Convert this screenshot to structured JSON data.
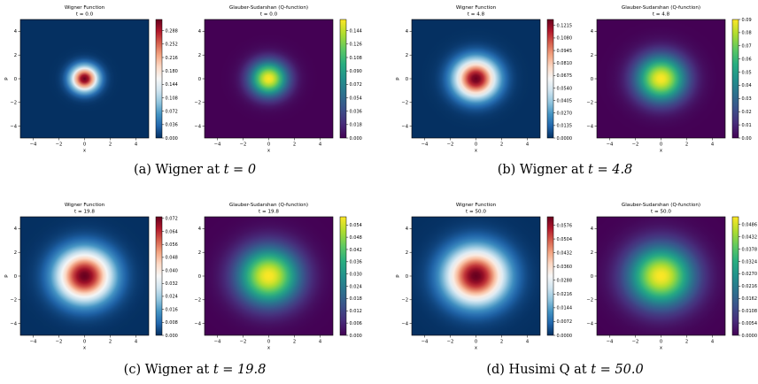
{
  "captions": [
    {
      "label": "(a)",
      "prefix": "Wigner at",
      "expr": "t = 0"
    },
    {
      "label": "(b)",
      "prefix": "Wigner at",
      "expr": "t = 4.8"
    },
    {
      "label": "(c)",
      "prefix": "Wigner at",
      "expr": "t = 19.8"
    },
    {
      "label": "(d)",
      "prefix": "Husimi Q at",
      "expr": "t = 50.0"
    }
  ],
  "chart_data": [
    {
      "type": "heatmap",
      "title": "Wigner Function",
      "subtitle": "t = 0.0",
      "xlabel": "x",
      "ylabel": "p",
      "xlim": [
        -5,
        5
      ],
      "ylim": [
        -5,
        5
      ],
      "xticks": [
        "−4",
        "−2",
        "0",
        "2",
        "4"
      ],
      "yticks": [
        "4",
        "2",
        "0",
        "−2",
        "−4"
      ],
      "colormap": "RdBu_r",
      "colorbar_ticks": [
        "0.288",
        "0.252",
        "0.216",
        "0.180",
        "0.144",
        "0.108",
        "0.072",
        "0.036",
        "0.000"
      ],
      "colorbar_max": 0.318,
      "peak": 0.318,
      "gaussian_sigma": 0.71,
      "center": [
        0,
        0
      ]
    },
    {
      "type": "heatmap",
      "title": "Glauber-Sudarshan (Q-function)",
      "subtitle": "t = 0.0",
      "xlabel": "x",
      "ylabel": "",
      "xlim": [
        -5,
        5
      ],
      "ylim": [
        -5,
        5
      ],
      "xticks": [
        "−4",
        "−2",
        "0",
        "2",
        "4"
      ],
      "yticks": [
        "4",
        "2",
        "0",
        "−2",
        "−4"
      ],
      "colormap": "viridis",
      "colorbar_ticks": [
        "0.144",
        "0.126",
        "0.108",
        "0.090",
        "0.072",
        "0.054",
        "0.036",
        "0.018",
        "0.000"
      ],
      "colorbar_max": 0.159,
      "peak": 0.159,
      "gaussian_sigma": 1.0,
      "center": [
        0,
        0
      ]
    },
    {
      "type": "heatmap",
      "title": "Wigner Function",
      "subtitle": "t = 4.8",
      "xlabel": "x",
      "ylabel": "p",
      "xlim": [
        -5,
        5
      ],
      "ylim": [
        -5,
        5
      ],
      "xticks": [
        "−4",
        "−2",
        "0",
        "2",
        "4"
      ],
      "yticks": [
        "4",
        "2",
        "0",
        "−2",
        "−4"
      ],
      "colormap": "RdBu_r",
      "colorbar_ticks": [
        "0.1215",
        "0.1080",
        "0.0945",
        "0.0810",
        "0.0675",
        "0.0540",
        "0.0405",
        "0.0270",
        "0.0135",
        "0.0000"
      ],
      "colorbar_max": 0.128,
      "peak": 0.128,
      "gaussian_sigma": 1.12,
      "center": [
        0,
        0
      ]
    },
    {
      "type": "heatmap",
      "title": "Glauber-Sudarshan (Q-function)",
      "subtitle": "t = 4.8",
      "xlabel": "x",
      "ylabel": "",
      "xlim": [
        -5,
        5
      ],
      "ylim": [
        -5,
        5
      ],
      "xticks": [
        "−4",
        "−2",
        "0",
        "2",
        "4"
      ],
      "yticks": [
        "4",
        "2",
        "0",
        "−2",
        "−4"
      ],
      "colormap": "viridis",
      "colorbar_ticks": [
        "0.09",
        "0.08",
        "0.07",
        "0.06",
        "0.05",
        "0.04",
        "0.03",
        "0.02",
        "0.01",
        "0.00"
      ],
      "colorbar_max": 0.09,
      "peak": 0.09,
      "gaussian_sigma": 1.33,
      "center": [
        0,
        0
      ]
    },
    {
      "type": "heatmap",
      "title": "Wigner Function",
      "subtitle": "t = 19.8",
      "xlabel": "x",
      "ylabel": "p",
      "xlim": [
        -5,
        5
      ],
      "ylim": [
        -5,
        5
      ],
      "xticks": [
        "−4",
        "−2",
        "0",
        "2",
        "4"
      ],
      "yticks": [
        "4",
        "2",
        "0",
        "−2",
        "−4"
      ],
      "colormap": "RdBu_r",
      "colorbar_ticks": [
        "0.072",
        "0.064",
        "0.056",
        "0.048",
        "0.040",
        "0.032",
        "0.024",
        "0.016",
        "0.008",
        "0.000"
      ],
      "colorbar_max": 0.073,
      "peak": 0.073,
      "gaussian_sigma": 1.48,
      "center": [
        0,
        0
      ]
    },
    {
      "type": "heatmap",
      "title": "Glauber-Sudarshan (Q-function)",
      "subtitle": "t = 19.8",
      "xlabel": "x",
      "ylabel": "",
      "xlim": [
        -5,
        5
      ],
      "ylim": [
        -5,
        5
      ],
      "xticks": [
        "−4",
        "−2",
        "0",
        "2",
        "4"
      ],
      "yticks": [
        "4",
        "2",
        "0",
        "−2",
        "−4"
      ],
      "colormap": "viridis",
      "colorbar_ticks": [
        "0.054",
        "0.048",
        "0.042",
        "0.036",
        "0.030",
        "0.024",
        "0.018",
        "0.012",
        "0.006",
        "0.000"
      ],
      "colorbar_max": 0.058,
      "peak": 0.058,
      "gaussian_sigma": 1.66,
      "center": [
        0,
        0
      ]
    },
    {
      "type": "heatmap",
      "title": "Wigner Function",
      "subtitle": "t = 50.0",
      "xlabel": "x",
      "ylabel": "p",
      "xlim": [
        -5,
        5
      ],
      "ylim": [
        -5,
        5
      ],
      "xticks": [
        "−4",
        "−2",
        "0",
        "2",
        "4"
      ],
      "yticks": [
        "4",
        "2",
        "0",
        "−2",
        "−4"
      ],
      "colormap": "RdBu_r",
      "colorbar_ticks": [
        "0.0576",
        "0.0504",
        "0.0432",
        "0.0360",
        "0.0288",
        "0.0216",
        "0.0144",
        "0.0072",
        "0.0000"
      ],
      "colorbar_max": 0.062,
      "peak": 0.062,
      "gaussian_sigma": 1.6,
      "center": [
        0,
        0
      ]
    },
    {
      "type": "heatmap",
      "title": "Glauber-Sudarshan (Q-function)",
      "subtitle": "t = 50.0",
      "xlabel": "x",
      "ylabel": "",
      "xlim": [
        -5,
        5
      ],
      "ylim": [
        -5,
        5
      ],
      "xticks": [
        "−4",
        "−2",
        "0",
        "2",
        "4"
      ],
      "yticks": [
        "4",
        "2",
        "0",
        "−2",
        "−4"
      ],
      "colormap": "viridis",
      "colorbar_ticks": [
        "0.0486",
        "0.0432",
        "0.0378",
        "0.0324",
        "0.0270",
        "0.0216",
        "0.0162",
        "0.0108",
        "0.0054",
        "0.0000"
      ],
      "colorbar_max": 0.052,
      "peak": 0.052,
      "gaussian_sigma": 1.76,
      "center": [
        0,
        0
      ]
    }
  ]
}
